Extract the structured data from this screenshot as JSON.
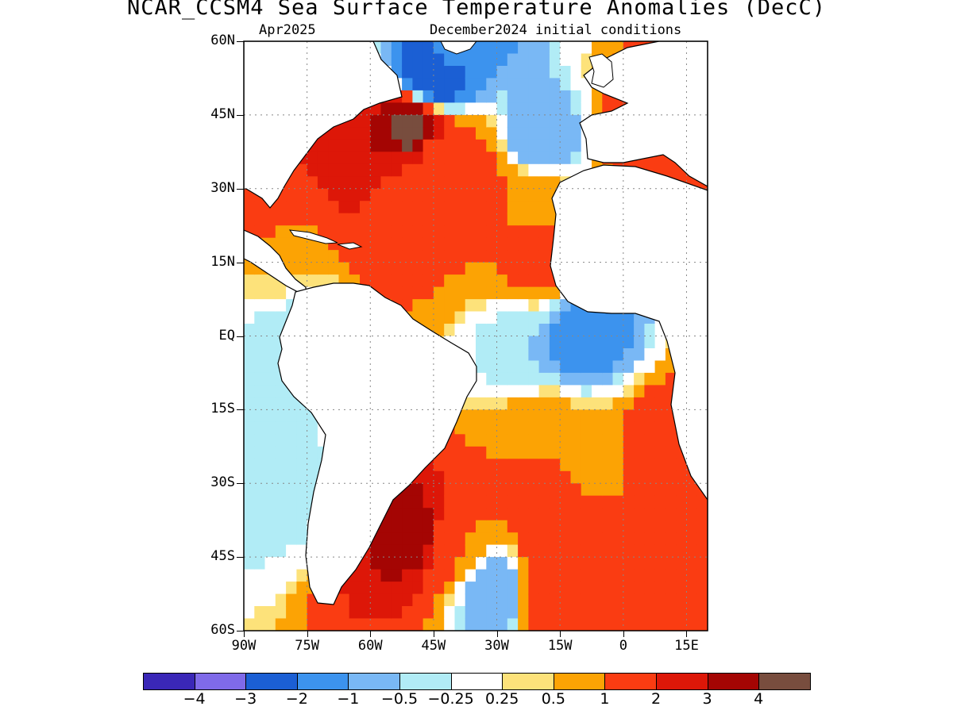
{
  "header": {
    "title": "NCAR_CCSM4 Sea Surface Temperature Anomalies (DecC)",
    "valid": "Apr2025",
    "init": "December2024 initial conditions"
  },
  "axes": {
    "lat_labels": [
      "60N",
      "45N",
      "30N",
      "15N",
      "EQ",
      "15S",
      "30S",
      "45S",
      "60S"
    ],
    "lon_labels": [
      "90W",
      "75W",
      "60W",
      "45W",
      "30W",
      "15W",
      "0",
      "15E"
    ]
  },
  "colorbar": {
    "colors": [
      "#3a27b7",
      "#7f6ae9",
      "#1b5fd4",
      "#3c93ee",
      "#79b8f5",
      "#b1ecf6",
      "#ffffff",
      "#fde27a",
      "#fca304",
      "#fa3c12",
      "#dd1708",
      "#a40503",
      "#784d3e"
    ],
    "labels": [
      "−4",
      "−3",
      "−2",
      "−1",
      "−0.5",
      "−0.25",
      "0.25",
      "0.5",
      "1",
      "2",
      "3",
      "4"
    ]
  },
  "chart_data": {
    "type": "map",
    "title": "NCAR_CCSM4 Sea Surface Temperature Anomalies (DecC)",
    "region": "Atlantic Ocean",
    "lat_range": [
      -60,
      60
    ],
    "lon_range": [
      -90,
      20
    ],
    "grid": true,
    "contour_levels": [
      -4,
      -3,
      -2,
      -1,
      -0.5,
      -0.25,
      0.25,
      0.5,
      1,
      2,
      3,
      4
    ],
    "features": [
      {
        "lon": -50,
        "lat": 42,
        "value": 4.5
      },
      {
        "lon": -60,
        "lat": 38,
        "value": 3
      },
      {
        "lon": -45,
        "lat": 36,
        "value": 1.5
      },
      {
        "lon": -35,
        "lat": 33,
        "value": 1.2
      },
      {
        "lon": -52,
        "lat": 28,
        "value": 1.5
      },
      {
        "lon": -40,
        "lat": 22,
        "value": 1
      },
      {
        "lon": -22,
        "lat": 28,
        "value": 1
      },
      {
        "lon": -20,
        "lat": 15,
        "value": 1.2
      },
      {
        "lon": -85,
        "lat": 28,
        "value": 2
      },
      {
        "lon": -82,
        "lat": 15,
        "value": 0.5
      },
      {
        "lon": -20,
        "lat": 40,
        "value": -1
      },
      {
        "lon": -45,
        "lat": 53,
        "value": -3
      },
      {
        "lon": -40,
        "lat": 60,
        "value": -1.5
      },
      {
        "lon": 5,
        "lat": 42,
        "value": 1.5
      },
      {
        "lon": -10,
        "lat": 0,
        "value": -1.5
      },
      {
        "lon": -25,
        "lat": -3,
        "value": -0.5
      },
      {
        "lon": -20,
        "lat": -20,
        "value": 1
      },
      {
        "lon": -5,
        "lat": -25,
        "value": 0.7
      },
      {
        "lon": 10,
        "lat": -25,
        "value": 2
      },
      {
        "lon": -50,
        "lat": -40,
        "value": 3.5
      },
      {
        "lon": -40,
        "lat": -42,
        "value": 1
      },
      {
        "lon": -15,
        "lat": -40,
        "value": 2
      },
      {
        "lon": 10,
        "lat": -42,
        "value": 2
      },
      {
        "lon": -30,
        "lat": -52,
        "value": -1
      },
      {
        "lon": -18,
        "lat": -52,
        "value": 2
      },
      {
        "lon": -82,
        "lat": -30,
        "value": -0.5
      },
      {
        "lon": -80,
        "lat": 0,
        "value": -0.5
      }
    ]
  }
}
